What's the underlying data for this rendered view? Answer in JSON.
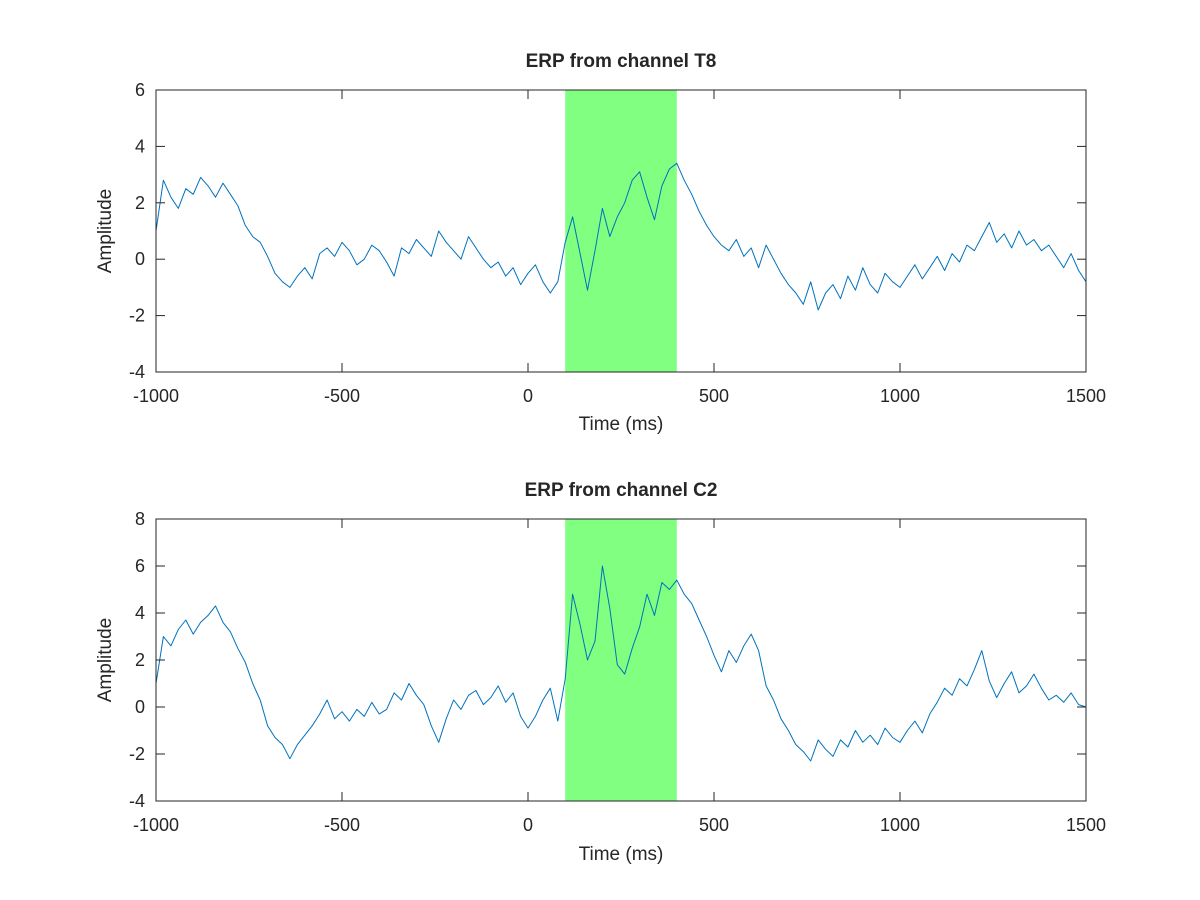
{
  "figure_background": "#ffffff",
  "chart_data": [
    {
      "type": "line",
      "title": "ERP from channel T8",
      "xlabel": "Time (ms)",
      "ylabel": "Amplitude",
      "xlim": [
        -1000,
        1500
      ],
      "ylim": [
        -4,
        6
      ],
      "xticks": [
        -1000,
        -500,
        0,
        500,
        1000,
        1500
      ],
      "xtick_labels": [
        "-1000",
        "-500",
        "0",
        "500",
        "1000",
        "1500"
      ],
      "yticks": [
        -4,
        -2,
        0,
        2,
        4,
        6
      ],
      "ytick_labels": [
        "-4",
        "-2",
        "0",
        "2",
        "4",
        "6"
      ],
      "grid": false,
      "highlight": {
        "x_start": 100,
        "x_end": 400,
        "color": "#80ff80"
      },
      "series": [
        {
          "color": "#0072bd",
          "x": [
            -1000,
            -980,
            -960,
            -940,
            -920,
            -900,
            -880,
            -860,
            -840,
            -820,
            -800,
            -780,
            -760,
            -740,
            -720,
            -700,
            -680,
            -660,
            -640,
            -620,
            -600,
            -580,
            -560,
            -540,
            -520,
            -500,
            -480,
            -460,
            -440,
            -420,
            -400,
            -380,
            -360,
            -340,
            -320,
            -300,
            -280,
            -260,
            -240,
            -220,
            -200,
            -180,
            -160,
            -140,
            -120,
            -100,
            -80,
            -60,
            -40,
            -20,
            0,
            20,
            40,
            60,
            80,
            100,
            120,
            140,
            160,
            180,
            200,
            220,
            240,
            260,
            280,
            300,
            320,
            340,
            360,
            380,
            400,
            420,
            440,
            460,
            480,
            500,
            520,
            540,
            560,
            580,
            600,
            620,
            640,
            660,
            680,
            700,
            720,
            740,
            760,
            780,
            800,
            820,
            840,
            860,
            880,
            900,
            920,
            940,
            960,
            980,
            1000,
            1020,
            1040,
            1060,
            1080,
            1100,
            1120,
            1140,
            1160,
            1180,
            1200,
            1220,
            1240,
            1260,
            1280,
            1300,
            1320,
            1340,
            1360,
            1380,
            1400,
            1420,
            1440,
            1460,
            1480,
            1500
          ],
          "y": [
            1.0,
            2.8,
            2.2,
            1.8,
            2.5,
            2.3,
            2.9,
            2.6,
            2.2,
            2.7,
            2.3,
            1.9,
            1.2,
            0.8,
            0.6,
            0.1,
            -0.5,
            -0.8,
            -1.0,
            -0.6,
            -0.3,
            -0.7,
            0.2,
            0.4,
            0.1,
            0.6,
            0.3,
            -0.2,
            0.0,
            0.5,
            0.3,
            -0.1,
            -0.6,
            0.4,
            0.2,
            0.7,
            0.4,
            0.1,
            1.0,
            0.6,
            0.3,
            0.0,
            0.8,
            0.4,
            0.0,
            -0.3,
            -0.1,
            -0.6,
            -0.3,
            -0.9,
            -0.5,
            -0.2,
            -0.8,
            -1.2,
            -0.8,
            0.6,
            1.5,
            0.2,
            -1.1,
            0.3,
            1.8,
            0.8,
            1.5,
            2.0,
            2.8,
            3.1,
            2.2,
            1.4,
            2.6,
            3.2,
            3.4,
            2.8,
            2.3,
            1.7,
            1.2,
            0.8,
            0.5,
            0.3,
            0.7,
            0.1,
            0.4,
            -0.3,
            0.5,
            0.0,
            -0.5,
            -0.9,
            -1.2,
            -1.6,
            -0.8,
            -1.8,
            -1.2,
            -0.9,
            -1.4,
            -0.6,
            -1.1,
            -0.3,
            -0.9,
            -1.2,
            -0.5,
            -0.8,
            -1.0,
            -0.6,
            -0.2,
            -0.7,
            -0.3,
            0.1,
            -0.4,
            0.2,
            -0.1,
            0.5,
            0.3,
            0.8,
            1.3,
            0.6,
            0.9,
            0.4,
            1.0,
            0.5,
            0.7,
            0.3,
            0.5,
            0.1,
            -0.3,
            0.2,
            -0.4,
            -0.8
          ]
        }
      ]
    },
    {
      "type": "line",
      "title": "ERP from channel C2",
      "xlabel": "Time (ms)",
      "ylabel": "Amplitude",
      "xlim": [
        -1000,
        1500
      ],
      "ylim": [
        -4,
        8
      ],
      "xticks": [
        -1000,
        -500,
        0,
        500,
        1000,
        1500
      ],
      "xtick_labels": [
        "-1000",
        "-500",
        "0",
        "500",
        "1000",
        "1500"
      ],
      "yticks": [
        -4,
        -2,
        0,
        2,
        4,
        6,
        8
      ],
      "ytick_labels": [
        "-4",
        "-2",
        "0",
        "2",
        "4",
        "6",
        "8"
      ],
      "grid": false,
      "highlight": {
        "x_start": 100,
        "x_end": 400,
        "color": "#80ff80"
      },
      "series": [
        {
          "color": "#0072bd",
          "x": [
            -1000,
            -980,
            -960,
            -940,
            -920,
            -900,
            -880,
            -860,
            -840,
            -820,
            -800,
            -780,
            -760,
            -740,
            -720,
            -700,
            -680,
            -660,
            -640,
            -620,
            -600,
            -580,
            -560,
            -540,
            -520,
            -500,
            -480,
            -460,
            -440,
            -420,
            -400,
            -380,
            -360,
            -340,
            -320,
            -300,
            -280,
            -260,
            -240,
            -220,
            -200,
            -180,
            -160,
            -140,
            -120,
            -100,
            -80,
            -60,
            -40,
            -20,
            0,
            20,
            40,
            60,
            80,
            100,
            120,
            140,
            160,
            180,
            200,
            220,
            240,
            260,
            280,
            300,
            320,
            340,
            360,
            380,
            400,
            420,
            440,
            460,
            480,
            500,
            520,
            540,
            560,
            580,
            600,
            620,
            640,
            660,
            680,
            700,
            720,
            740,
            760,
            780,
            800,
            820,
            840,
            860,
            880,
            900,
            920,
            940,
            960,
            980,
            1000,
            1020,
            1040,
            1060,
            1080,
            1100,
            1120,
            1140,
            1160,
            1180,
            1200,
            1220,
            1240,
            1260,
            1280,
            1300,
            1320,
            1340,
            1360,
            1380,
            1400,
            1420,
            1440,
            1460,
            1480,
            1500
          ],
          "y": [
            1.0,
            3.0,
            2.6,
            3.3,
            3.7,
            3.1,
            3.6,
            3.9,
            4.3,
            3.6,
            3.2,
            2.5,
            1.9,
            1.0,
            0.3,
            -0.8,
            -1.3,
            -1.6,
            -2.2,
            -1.6,
            -1.2,
            -0.8,
            -0.3,
            0.3,
            -0.5,
            -0.2,
            -0.6,
            -0.1,
            -0.4,
            0.2,
            -0.3,
            -0.1,
            0.6,
            0.3,
            1.0,
            0.5,
            0.1,
            -0.8,
            -1.5,
            -0.5,
            0.3,
            -0.1,
            0.5,
            0.7,
            0.1,
            0.4,
            0.9,
            0.2,
            0.6,
            -0.4,
            -0.9,
            -0.4,
            0.3,
            0.8,
            -0.6,
            1.2,
            4.8,
            3.5,
            2.0,
            2.8,
            6.0,
            4.2,
            1.8,
            1.4,
            2.5,
            3.4,
            4.8,
            3.9,
            5.3,
            5.0,
            5.4,
            4.8,
            4.4,
            3.7,
            3.0,
            2.2,
            1.5,
            2.4,
            1.9,
            2.6,
            3.1,
            2.4,
            0.9,
            0.3,
            -0.5,
            -1.0,
            -1.6,
            -1.9,
            -2.3,
            -1.4,
            -1.8,
            -2.1,
            -1.4,
            -1.7,
            -1.0,
            -1.5,
            -1.2,
            -1.6,
            -0.9,
            -1.3,
            -1.5,
            -1.0,
            -0.6,
            -1.1,
            -0.3,
            0.2,
            0.8,
            0.5,
            1.2,
            0.9,
            1.6,
            2.4,
            1.1,
            0.4,
            1.0,
            1.5,
            0.6,
            0.9,
            1.4,
            0.8,
            0.3,
            0.5,
            0.2,
            0.6,
            0.1,
            0.0
          ]
        }
      ]
    }
  ]
}
